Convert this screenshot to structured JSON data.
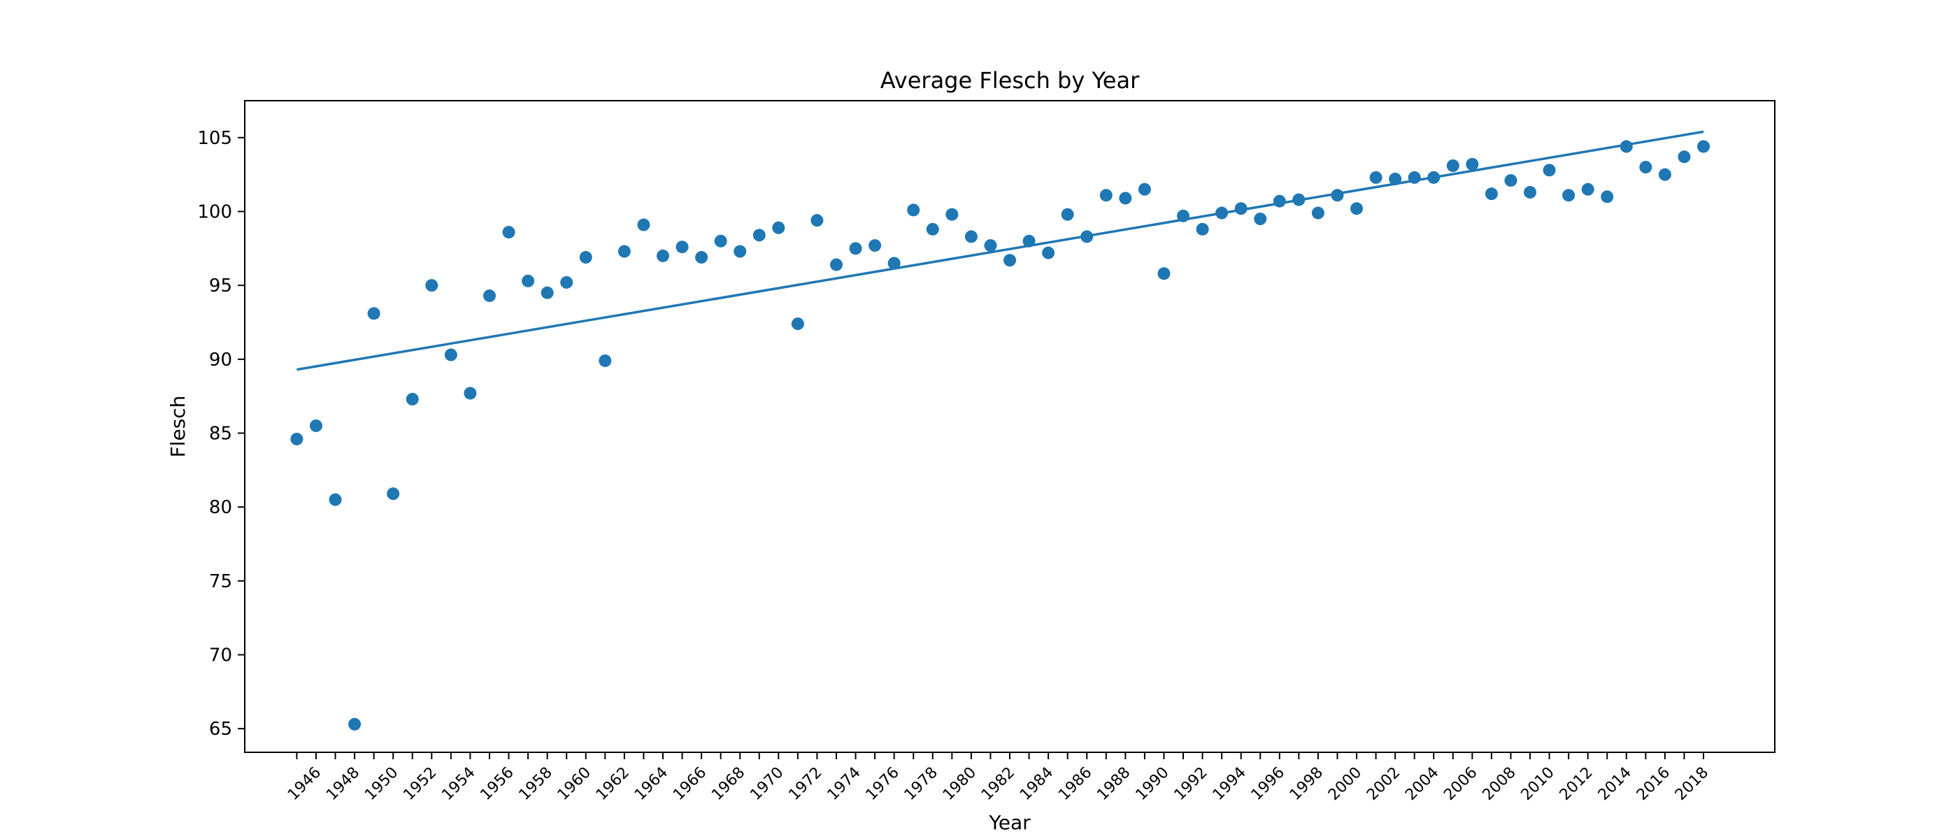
{
  "chart_data": {
    "type": "scatter",
    "title": "Average Flesch by Year",
    "xlabel": "Year",
    "ylabel": "Flesch",
    "xlim": [
      1942.3,
      2021.7
    ],
    "ylim": [
      63.4,
      107.5
    ],
    "yticks": [
      65,
      70,
      75,
      80,
      85,
      90,
      95,
      100,
      105
    ],
    "xticks": [
      1946,
      1948,
      1950,
      1952,
      1954,
      1956,
      1958,
      1960,
      1962,
      1964,
      1966,
      1968,
      1970,
      1972,
      1974,
      1976,
      1978,
      1980,
      1982,
      1984,
      1986,
      1988,
      1990,
      1992,
      1994,
      1996,
      1998,
      2000,
      2002,
      2004,
      2006,
      2008,
      2010,
      2012,
      2014,
      2016,
      2018
    ],
    "grid": false,
    "colors": {
      "series": "#1f77b4",
      "frame": "#000000"
    },
    "series": [
      {
        "type": "scatter",
        "x": [
          1945,
          1946,
          1947,
          1948,
          1949,
          1950,
          1951,
          1952,
          1953,
          1954,
          1955,
          1956,
          1957,
          1958,
          1959,
          1960,
          1961,
          1962,
          1963,
          1964,
          1965,
          1966,
          1967,
          1968,
          1969,
          1970,
          1971,
          1972,
          1973,
          1974,
          1975,
          1976,
          1977,
          1978,
          1979,
          1980,
          1981,
          1982,
          1983,
          1984,
          1985,
          1986,
          1987,
          1988,
          1989,
          1990,
          1991,
          1992,
          1993,
          1994,
          1995,
          1996,
          1997,
          1998,
          1999,
          2000,
          2001,
          2002,
          2003,
          2004,
          2005,
          2006,
          2007,
          2008,
          2009,
          2010,
          2011,
          2012,
          2013,
          2014,
          2015,
          2016,
          2017,
          2018
        ],
        "y": [
          84.6,
          85.5,
          80.5,
          65.3,
          93.1,
          80.9,
          87.3,
          95.0,
          90.3,
          87.7,
          94.3,
          98.6,
          95.3,
          94.5,
          95.2,
          96.9,
          89.9,
          97.3,
          99.1,
          97.0,
          97.6,
          96.9,
          98.0,
          97.3,
          98.4,
          98.9,
          92.4,
          99.4,
          96.4,
          97.5,
          97.7,
          96.5,
          100.1,
          98.8,
          99.8,
          98.3,
          97.7,
          96.7,
          98.0,
          97.2,
          99.8,
          98.3,
          101.1,
          100.9,
          101.5,
          95.8,
          99.7,
          98.8,
          99.9,
          100.2,
          99.5,
          100.7,
          100.8,
          99.9,
          101.1,
          100.2,
          102.3,
          102.2,
          102.3,
          102.3,
          103.1,
          103.2,
          101.2,
          102.1,
          101.3,
          102.8,
          101.1,
          101.5,
          101.0,
          104.4,
          103.0,
          102.5,
          103.7,
          104.4
        ]
      },
      {
        "type": "line",
        "x": [
          1945,
          2018
        ],
        "y": [
          89.3,
          105.4
        ]
      }
    ]
  }
}
